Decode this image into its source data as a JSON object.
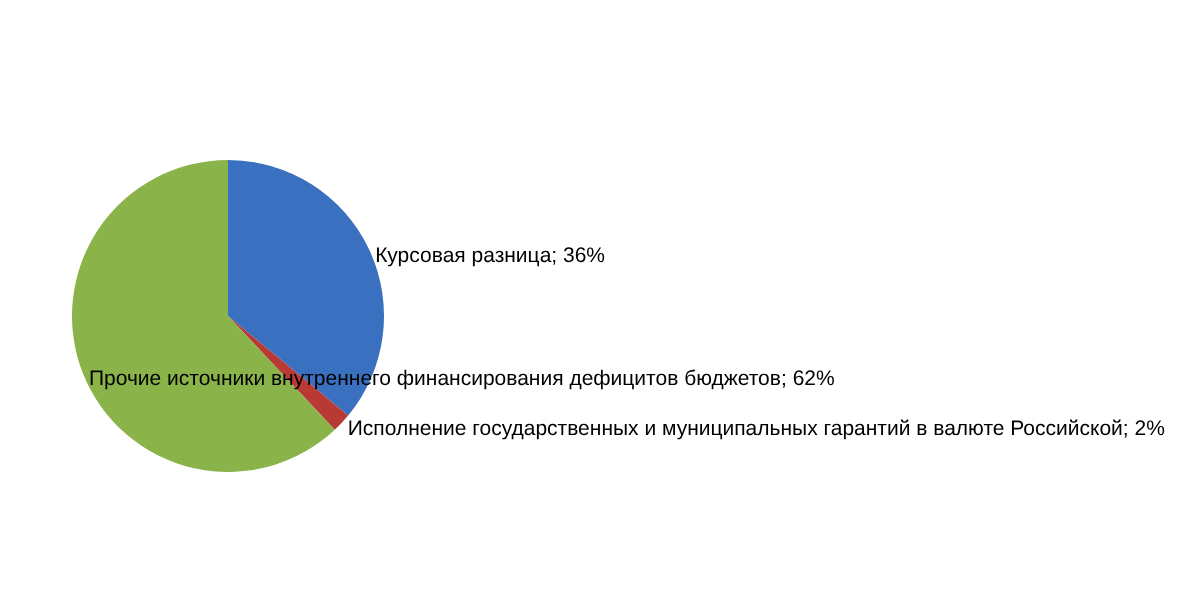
{
  "chart_data": {
    "type": "pie",
    "categories": [
      "Курсовая разница",
      "Исполнение государственных и муниципальных гарантий в валюте Российской",
      "Прочие источники внутреннего финансирования дефицитов бюджетов"
    ],
    "values": [
      36,
      2,
      62
    ],
    "value_labels": [
      "; 36%",
      "; 2%",
      "; 62%"
    ],
    "colors": [
      "#3a70c0",
      "#b93a35",
      "#8ab34a"
    ],
    "legend": false
  }
}
